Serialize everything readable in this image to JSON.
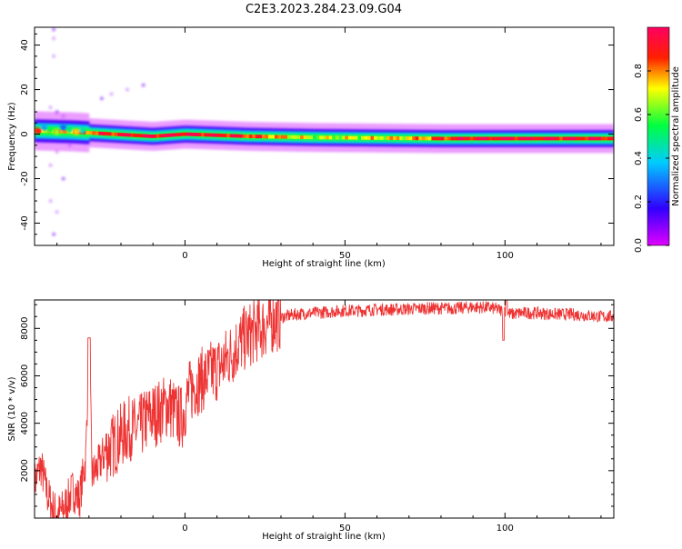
{
  "title": "C2E3.2023.284.23.09.G04",
  "chart_data": [
    {
      "type": "heatmap",
      "xlabel": "Height of straight line (km)",
      "ylabel": "Frequency (Hz)",
      "xlim": [
        -47,
        134
      ],
      "ylim": [
        -50,
        48
      ],
      "xticks": [
        0,
        50,
        100
      ],
      "yticks": [
        -40,
        -20,
        0,
        20,
        40
      ],
      "colorbar": {
        "label": "Normalized spectral amplitude",
        "range": [
          0,
          1
        ],
        "ticks": [
          "0.0",
          "0.2",
          "0.4",
          "0.6",
          "0.8"
        ],
        "colormap": [
          "#e000ff",
          "#3000ff",
          "#00ccff",
          "#00ff40",
          "#ffff00",
          "#ff2000",
          "#ff0060"
        ]
      },
      "band": {
        "center_freq_hz": [
          [
            -47,
            1.5
          ],
          [
            -35,
            1
          ],
          [
            -10,
            -1
          ],
          [
            0,
            0
          ],
          [
            20,
            -1
          ],
          [
            40,
            -1.5
          ],
          [
            80,
            -2
          ],
          [
            100,
            -2
          ],
          [
            134,
            -2
          ]
        ],
        "peak_amplitude": [
          [
            -47,
            0.7
          ],
          [
            -30,
            0.8
          ],
          [
            -20,
            0.9
          ],
          [
            -5,
            0.95
          ],
          [
            15,
            0.9
          ],
          [
            40,
            0.6
          ],
          [
            70,
            0.7
          ],
          [
            85,
            0.9
          ],
          [
            100,
            0.95
          ],
          [
            134,
            0.9
          ]
        ]
      },
      "scatter_points": [
        {
          "x": -41,
          "y": 47
        },
        {
          "x": -41,
          "y": 43
        },
        {
          "x": -41,
          "y": 35
        },
        {
          "x": -40,
          "y": 10
        },
        {
          "x": -42,
          "y": 12
        },
        {
          "x": -38,
          "y": 8
        },
        {
          "x": -26,
          "y": 16
        },
        {
          "x": -23,
          "y": 18
        },
        {
          "x": -18,
          "y": 20
        },
        {
          "x": -13,
          "y": 22
        },
        {
          "x": -40,
          "y": -8
        },
        {
          "x": -42,
          "y": -14
        },
        {
          "x": -38,
          "y": -20
        },
        {
          "x": -42,
          "y": -30
        },
        {
          "x": -40,
          "y": -35
        },
        {
          "x": -41,
          "y": -45
        },
        {
          "x": -33,
          "y": 5
        },
        {
          "x": -36,
          "y": -5
        }
      ]
    },
    {
      "type": "line",
      "xlabel": "Height of straight line (km)",
      "ylabel": "SNR (10 * v/v)",
      "xlim": [
        -47,
        134
      ],
      "ylim": [
        0,
        9200
      ],
      "xticks": [
        0,
        50,
        100
      ],
      "yticks": [
        2000,
        4000,
        6000,
        8000
      ],
      "color": "#ee3333",
      "series": [
        {
          "x": [
            -47,
            -45,
            -43,
            -41,
            -39,
            -37,
            -35,
            -33,
            -31,
            -30,
            -29,
            -27,
            -25,
            -23,
            -21,
            -19,
            -17,
            -15,
            -13,
            -11,
            -9,
            -7,
            -5,
            -3,
            -1,
            1,
            3,
            5,
            7,
            9,
            11,
            13,
            15,
            17,
            19,
            21,
            23,
            25,
            27,
            29,
            31,
            33,
            35,
            40,
            45,
            50,
            55,
            60,
            65,
            70,
            75,
            80,
            85,
            90,
            95,
            98,
            100,
            102,
            105,
            110,
            115,
            120,
            125,
            130,
            134
          ],
          "y": [
            1500,
            2200,
            1000,
            300,
            200,
            600,
            1200,
            800,
            2500,
            7600,
            1800,
            2200,
            2800,
            3000,
            3300,
            3600,
            3800,
            3700,
            4000,
            4300,
            4400,
            4600,
            4800,
            4400,
            4200,
            5200,
            5600,
            5800,
            6000,
            6200,
            6400,
            6700,
            7000,
            7400,
            7600,
            7800,
            8000,
            8100,
            8300,
            8400,
            8500,
            8550,
            8600,
            8650,
            8700,
            8750,
            8750,
            8800,
            8800,
            8820,
            8850,
            8850,
            8850,
            8900,
            8880,
            8800,
            8700,
            8600,
            8650,
            8650,
            8600,
            8600,
            8550,
            8500,
            8500
          ]
        }
      ]
    }
  ]
}
